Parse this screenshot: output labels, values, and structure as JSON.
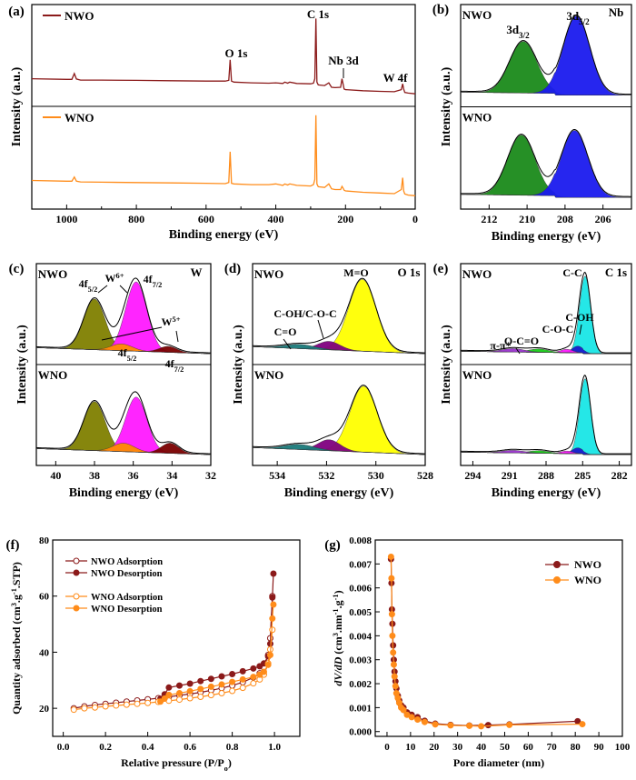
{
  "chart_data": [
    {
      "panel": "(a)",
      "type": "line",
      "xlabel": "Binding energy (eV)",
      "ylabel": "Intensity (a.u.)",
      "xlim": [
        1100,
        0
      ],
      "xticks": [
        1000,
        800,
        600,
        400,
        200,
        0
      ],
      "legend": [
        {
          "name": "NWO",
          "color": "#8b1a1a"
        },
        {
          "name": "WNO",
          "color": "#ff8c1a"
        }
      ],
      "annotations": [
        {
          "text": "O 1s",
          "x": 531
        },
        {
          "text": "C 1s",
          "x": 285
        },
        {
          "text": "Nb 3d",
          "x": 207
        },
        {
          "text": "W 4f",
          "x": 35
        }
      ],
      "series": [
        {
          "name": "NWO",
          "color": "#8b1a1a",
          "x": [
            1100,
            1000,
            985,
            978,
            972,
            960,
            900,
            800,
            700,
            600,
            545,
            535,
            531,
            527,
            520,
            470,
            420,
            400,
            380,
            374,
            366,
            360,
            340,
            300,
            292,
            288,
            285,
            282,
            278,
            260,
            248,
            240,
            230,
            214,
            210,
            207,
            204,
            200,
            150,
            100,
            60,
            40,
            36,
            33,
            30,
            20,
            0
          ],
          "y": [
            0.7,
            0.68,
            0.68,
            0.85,
            0.69,
            0.66,
            0.66,
            0.65,
            0.64,
            0.63,
            0.63,
            0.65,
            1.25,
            0.63,
            0.6,
            0.58,
            0.57,
            0.58,
            0.56,
            0.6,
            0.57,
            0.6,
            0.56,
            0.55,
            0.57,
            0.7,
            2.45,
            0.6,
            0.52,
            0.5,
            0.58,
            0.45,
            0.44,
            0.45,
            0.7,
            0.55,
            0.4,
            0.38,
            0.35,
            0.33,
            0.32,
            0.38,
            0.55,
            0.4,
            0.3,
            0.28,
            0.26
          ]
        },
        {
          "name": "WNO",
          "color": "#ff8c1a",
          "x": [
            1100,
            1000,
            985,
            978,
            972,
            960,
            900,
            800,
            700,
            600,
            545,
            535,
            531,
            527,
            520,
            470,
            420,
            400,
            380,
            374,
            366,
            360,
            340,
            300,
            292,
            288,
            285,
            282,
            278,
            260,
            248,
            240,
            230,
            214,
            210,
            207,
            204,
            200,
            150,
            100,
            60,
            40,
            36,
            33,
            30,
            20,
            0
          ],
          "y": [
            0.72,
            0.7,
            0.7,
            0.82,
            0.7,
            0.68,
            0.67,
            0.66,
            0.65,
            0.64,
            0.63,
            0.66,
            1.55,
            0.64,
            0.62,
            0.6,
            0.6,
            0.62,
            0.58,
            0.62,
            0.59,
            0.62,
            0.58,
            0.56,
            0.6,
            0.75,
            2.6,
            0.62,
            0.54,
            0.52,
            0.62,
            0.48,
            0.46,
            0.46,
            0.55,
            0.5,
            0.44,
            0.42,
            0.38,
            0.36,
            0.34,
            0.46,
            0.8,
            0.42,
            0.33,
            0.3,
            0.28
          ]
        }
      ]
    },
    {
      "panel": "(b)",
      "type": "area",
      "title": "Nb",
      "xlabel": "Binding energy (eV)",
      "ylabel": "Intensity (a.u.)",
      "xlim": [
        213.5,
        204.5
      ],
      "xticks": [
        212,
        210,
        208,
        206
      ],
      "sublabels": [
        "NWO",
        "WNO"
      ],
      "peak_labels": [
        "3d3/2",
        "3d5/2"
      ],
      "subpanels": [
        {
          "name": "NWO",
          "peaks": [
            {
              "label": "3d3/2",
              "center": 210.2,
              "height": 0.6,
              "width": 0.72,
              "color": "#1a8a1a"
            },
            {
              "label": "3d5/2",
              "center": 207.4,
              "height": 0.92,
              "width": 0.7,
              "color": "#1a1aee"
            }
          ]
        },
        {
          "name": "WNO",
          "peaks": [
            {
              "label": "3d3/2",
              "center": 210.3,
              "height": 0.7,
              "width": 0.72,
              "color": "#1a8a1a"
            },
            {
              "label": "3d5/2",
              "center": 207.5,
              "height": 0.78,
              "width": 0.7,
              "color": "#1a1aee"
            }
          ]
        }
      ]
    },
    {
      "panel": "(c)",
      "type": "area",
      "title": "W",
      "xlabel": "Binding energy (eV)",
      "ylabel": "Intensity (a.u.)",
      "xlim": [
        41,
        32
      ],
      "xticks": [
        40,
        38,
        36,
        34,
        32
      ],
      "sublabels": [
        "NWO",
        "WNO"
      ],
      "annotations": [
        "4f5/2",
        "W6+",
        "4f7/2",
        "W5+",
        "4f5/2",
        "4f7/2"
      ],
      "subpanels": [
        {
          "name": "NWO",
          "peaks": [
            {
              "label": "W6+ 4f5/2",
              "center": 38.0,
              "height": 0.6,
              "width": 0.55,
              "color": "#808000"
            },
            {
              "label": "W6+ 4f7/2",
              "center": 35.85,
              "height": 0.82,
              "width": 0.55,
              "color": "#ff19ff"
            },
            {
              "label": "W5+ 4f5/2",
              "center": 36.6,
              "height": 0.08,
              "width": 0.55,
              "color": "#ff8c00"
            },
            {
              "label": "W5+ 4f7/2",
              "center": 34.2,
              "height": 0.07,
              "width": 0.45,
              "color": "#7a0000"
            }
          ]
        },
        {
          "name": "WNO",
          "peaks": [
            {
              "label": "W6+ 4f5/2",
              "center": 38.0,
              "height": 0.58,
              "width": 0.55,
              "color": "#808000"
            },
            {
              "label": "W6+ 4f7/2",
              "center": 35.85,
              "height": 0.65,
              "width": 0.55,
              "color": "#ff19ff"
            },
            {
              "label": "W5+ 4f5/2",
              "center": 36.5,
              "height": 0.1,
              "width": 0.55,
              "color": "#ff8c00"
            },
            {
              "label": "W5+ 4f7/2",
              "center": 34.1,
              "height": 0.12,
              "width": 0.45,
              "color": "#7a0000"
            }
          ]
        }
      ]
    },
    {
      "panel": "(d)",
      "type": "area",
      "title": "O 1s",
      "xlabel": "Binding energy (eV)",
      "ylabel": "Intensity (a.u.)",
      "xlim": [
        535,
        528
      ],
      "xticks": [
        534,
        532,
        530,
        528
      ],
      "sublabels": [
        "NWO",
        "WNO"
      ],
      "annotations": [
        "M=O",
        "C-OH/C-O-C",
        "C=O"
      ],
      "subpanels": [
        {
          "name": "NWO",
          "peaks": [
            {
              "label": "M=O",
              "center": 530.55,
              "height": 0.85,
              "width": 0.55,
              "color": "#ffff00"
            },
            {
              "label": "C-OH/C-O-C",
              "center": 531.9,
              "height": 0.1,
              "width": 0.45,
              "color": "#800080"
            },
            {
              "label": "C=O",
              "center": 533.1,
              "height": 0.05,
              "width": 0.6,
              "color": "#1a7a7a"
            }
          ]
        },
        {
          "name": "WNO",
          "peaks": [
            {
              "label": "M=O",
              "center": 530.5,
              "height": 0.78,
              "width": 0.55,
              "color": "#ffff00"
            },
            {
              "label": "C-OH/C-O-C",
              "center": 531.9,
              "height": 0.13,
              "width": 0.45,
              "color": "#800080"
            },
            {
              "label": "C=O",
              "center": 533.1,
              "height": 0.06,
              "width": 0.6,
              "color": "#1a7a7a"
            }
          ]
        }
      ]
    },
    {
      "panel": "(e)",
      "type": "area",
      "title": "C 1s",
      "xlabel": "Binding energy (eV)",
      "ylabel": "Intensity (a.u.)",
      "xlim": [
        295,
        281
      ],
      "xticks": [
        294,
        291,
        288,
        285,
        282
      ],
      "sublabels": [
        "NWO",
        "WNO"
      ],
      "annotations": [
        "C-C",
        "C-OH",
        "C-O-C",
        "O-C=O",
        "π-π*"
      ],
      "subpanels": [
        {
          "name": "NWO",
          "peaks": [
            {
              "label": "C-C",
              "center": 284.8,
              "height": 0.92,
              "width": 0.45,
              "color": "#19e6e6"
            },
            {
              "label": "C-OH",
              "center": 285.4,
              "height": 0.08,
              "width": 0.45,
              "color": "#1a1acc"
            },
            {
              "label": "C-O-C",
              "center": 286.3,
              "height": 0.04,
              "width": 0.5,
              "color": "#ff19ff"
            },
            {
              "label": "O-C=O",
              "center": 288.6,
              "height": 0.04,
              "width": 0.8,
              "color": "#19cc19"
            },
            {
              "label": "π-π*",
              "center": 290.7,
              "height": 0.04,
              "width": 0.9,
              "color": "#9933cc"
            }
          ]
        },
        {
          "name": "WNO",
          "peaks": [
            {
              "label": "C-C",
              "center": 284.8,
              "height": 0.9,
              "width": 0.45,
              "color": "#19e6e6"
            },
            {
              "label": "C-OH",
              "center": 285.4,
              "height": 0.07,
              "width": 0.45,
              "color": "#1a1acc"
            },
            {
              "label": "C-O-C",
              "center": 286.3,
              "height": 0.03,
              "width": 0.5,
              "color": "#ff19ff"
            },
            {
              "label": "O-C=O",
              "center": 288.6,
              "height": 0.03,
              "width": 0.8,
              "color": "#19cc19"
            },
            {
              "label": "π-π*",
              "center": 290.7,
              "height": 0.03,
              "width": 0.9,
              "color": "#9933cc"
            }
          ]
        }
      ]
    },
    {
      "panel": "(f)",
      "type": "line",
      "xlabel": "Relative pressure (P/Po)",
      "ylabel": "Quantity adsorbed (cm3.g-1.STP)",
      "xlim": [
        -0.05,
        1.12
      ],
      "ylim": [
        10,
        80
      ],
      "xticks": [
        0.0,
        0.2,
        0.4,
        0.6,
        0.8,
        1.0
      ],
      "yticks": [
        20,
        40,
        60,
        80
      ],
      "legend_position": "top-left",
      "series": [
        {
          "name": "NWO Adsorption",
          "color": "#8b1a1a",
          "marker": "open-circle",
          "x": [
            0.05,
            0.1,
            0.15,
            0.2,
            0.25,
            0.3,
            0.35,
            0.4,
            0.45,
            0.5,
            0.55,
            0.6,
            0.65,
            0.7,
            0.75,
            0.8,
            0.85,
            0.9,
            0.93,
            0.95,
            0.97,
            0.98,
            0.99
          ],
          "y": [
            20.0,
            20.7,
            21.2,
            21.6,
            22.0,
            22.4,
            22.8,
            23.2,
            23.6,
            24.1,
            24.6,
            25.1,
            25.7,
            26.4,
            27.2,
            28.1,
            29.3,
            31.0,
            32.5,
            34.5,
            39.0,
            45.0,
            60.0
          ]
        },
        {
          "name": "NWO Desorption",
          "color": "#8b1a1a",
          "marker": "filled-circle",
          "x": [
            0.995,
            0.99,
            0.98,
            0.97,
            0.95,
            0.93,
            0.9,
            0.85,
            0.8,
            0.75,
            0.7,
            0.65,
            0.6,
            0.55,
            0.5,
            0.48,
            0.46
          ],
          "y": [
            68.0,
            59.5,
            43.0,
            38.5,
            36.0,
            35.0,
            34.2,
            33.2,
            32.2,
            31.4,
            30.5,
            29.7,
            28.8,
            28.1,
            27.4,
            25.0,
            23.4
          ]
        },
        {
          "name": "WNO Adsorption",
          "color": "#ff8c1a",
          "marker": "open-circle",
          "x": [
            0.05,
            0.1,
            0.15,
            0.2,
            0.25,
            0.3,
            0.35,
            0.4,
            0.45,
            0.5,
            0.55,
            0.6,
            0.65,
            0.7,
            0.75,
            0.8,
            0.85,
            0.9,
            0.93,
            0.95,
            0.97,
            0.98,
            0.99
          ],
          "y": [
            19.5,
            20.0,
            20.3,
            20.7,
            21.0,
            21.3,
            21.6,
            21.9,
            22.3,
            22.7,
            23.1,
            23.6,
            24.1,
            24.7,
            25.4,
            26.2,
            27.3,
            28.9,
            30.3,
            32.0,
            36.0,
            41.0,
            48.0
          ]
        },
        {
          "name": "WNO Desorption",
          "color": "#ff8c1a",
          "marker": "filled-circle",
          "x": [
            0.995,
            0.99,
            0.98,
            0.97,
            0.95,
            0.93,
            0.9,
            0.85,
            0.8,
            0.75,
            0.7,
            0.65,
            0.6,
            0.55,
            0.5,
            0.48,
            0.46
          ],
          "y": [
            57.0,
            52.0,
            39.0,
            35.5,
            33.0,
            32.0,
            31.2,
            30.3,
            29.4,
            28.5,
            27.7,
            26.9,
            26.1,
            25.4,
            24.8,
            23.5,
            22.4
          ]
        }
      ]
    },
    {
      "panel": "(g)",
      "type": "line",
      "xlabel": "Pore diameter (nm)",
      "ylabel": "dV/dD (cm3.nm-1.g-1)",
      "xlim": [
        -5,
        100
      ],
      "ylim": [
        -0.0002,
        0.008
      ],
      "xticks": [
        0,
        10,
        20,
        30,
        40,
        50,
        60,
        70,
        80,
        90,
        100
      ],
      "yticks": [
        0.0,
        0.001,
        0.002,
        0.003,
        0.004,
        0.005,
        0.006,
        0.007,
        0.008
      ],
      "legend_position": "top-right",
      "series": [
        {
          "name": "NWO",
          "color": "#8b1a1a",
          "marker": "filled-circle",
          "x": [
            1.7,
            1.9,
            2.1,
            2.3,
            2.6,
            2.9,
            3.2,
            3.6,
            4.0,
            4.6,
            5.2,
            6.0,
            7.0,
            8.5,
            10.5,
            13.0,
            16.0,
            20.5,
            27.0,
            35.0,
            43.0,
            52.0,
            81.0
          ],
          "y": [
            0.0072,
            0.0062,
            0.0051,
            0.0045,
            0.0036,
            0.003,
            0.0025,
            0.0021,
            0.0018,
            0.0015,
            0.0013,
            0.0011,
            0.001,
            0.0008,
            0.0007,
            0.0006,
            0.00045,
            0.00033,
            0.00028,
            0.00025,
            0.00027,
            0.0003,
            0.00043
          ]
        },
        {
          "name": "WNO",
          "color": "#ff8c1a",
          "marker": "filled-circle",
          "x": [
            1.7,
            1.9,
            2.1,
            2.3,
            2.6,
            2.9,
            3.2,
            3.6,
            4.0,
            4.6,
            5.2,
            6.0,
            7.0,
            8.5,
            10.5,
            13.0,
            16.0,
            20.5,
            27.0,
            35.0,
            40.0,
            52.0,
            83.0
          ],
          "y": [
            0.0073,
            0.0064,
            0.0049,
            0.004,
            0.0033,
            0.0028,
            0.0023,
            0.0019,
            0.0016,
            0.0014,
            0.0012,
            0.001,
            0.0009,
            0.0007,
            0.0006,
            0.0005,
            0.0004,
            0.0003,
            0.00026,
            0.00024,
            0.00022,
            0.00028,
            0.00031
          ]
        }
      ]
    }
  ]
}
